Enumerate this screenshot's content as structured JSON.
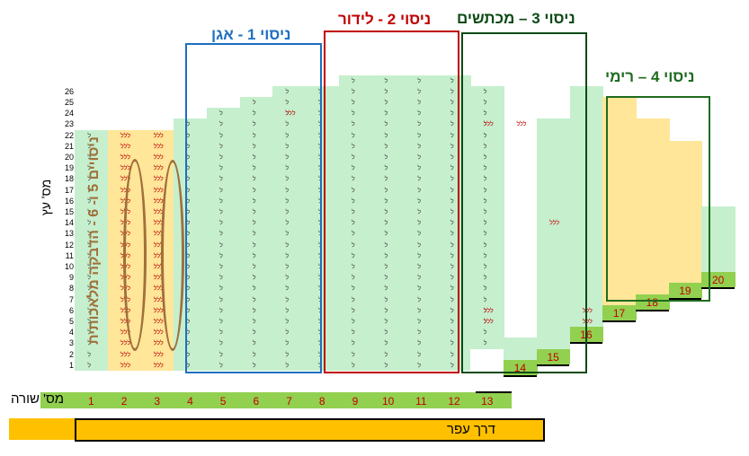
{
  "titles": {
    "exp1": "ניסוי 1 - אגן",
    "exp2": "ניסוי 2 - לידור",
    "exp3": "ניסוי 3 – מכתשים",
    "exp4": "ניסוי 4 – רימי",
    "exp56": "ניסויים 5 ו- 6 - הדבקה מלאכותית"
  },
  "axis": {
    "tree_number_label": "מס' עץ",
    "row_number_label": "מס' שורה",
    "dirt_road_label": "דרך עפר",
    "tree_numbers": [
      "1",
      "2",
      "3",
      "4",
      "5",
      "6",
      "7",
      "8",
      "9",
      "10",
      "11",
      "12",
      "13",
      "14",
      "15",
      "16",
      "17",
      "18",
      "19",
      "20",
      "21",
      "22",
      "23",
      "24",
      "25",
      "26"
    ],
    "row_numbers": [
      "1",
      "2",
      "3",
      "4",
      "5",
      "6",
      "7",
      "8",
      "9",
      "10",
      "11",
      "12",
      "13"
    ],
    "extra_row_numbers": [
      "14",
      "15",
      "16",
      "17",
      "18",
      "19",
      "20"
    ]
  },
  "marks": {
    "single": "ל",
    "triple": "ללל"
  },
  "colors": {
    "green_light": "#c6efce",
    "yellow_light": "#ffe699",
    "green_bar": "#92d050",
    "orange_bar": "#ffc000",
    "exp1_blue": "#1f6fc0",
    "exp2_red": "#c00000",
    "exp3_darkgreen": "#0b4a14",
    "exp4_green": "#1f6b1f",
    "exp56_brown": "#a0703a"
  }
}
